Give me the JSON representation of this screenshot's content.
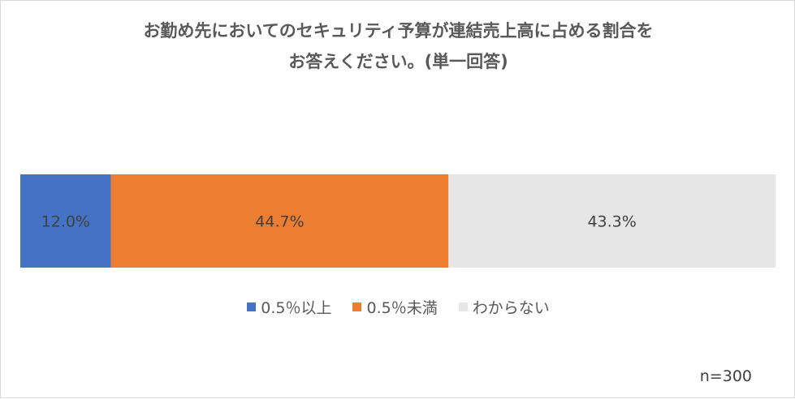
{
  "chart_data": {
    "type": "bar",
    "orientation": "horizontal-stacked-100",
    "title_lines": [
      "お勤め先においてのセキュリティ予算が連結売上高に占める割合を",
      "お答えください。(単一回答)"
    ],
    "series": [
      {
        "name": "0.5％以上",
        "value": 12.0,
        "label": "12.0%",
        "color": "#4472C4"
      },
      {
        "name": "0.5％未満",
        "value": 44.7,
        "label": "44.7%",
        "color": "#ED7D31"
      },
      {
        "name": "わからない",
        "value": 43.3,
        "label": "43.3%",
        "color": "#E7E6E6"
      }
    ],
    "xlim": [
      0,
      100
    ],
    "grid": false,
    "legend_position": "bottom",
    "note": "n=300"
  }
}
